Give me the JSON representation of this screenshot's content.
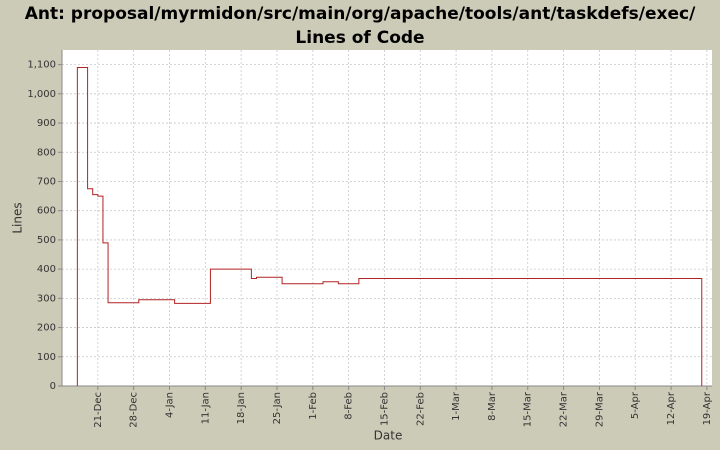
{
  "chart_data": {
    "type": "step-line",
    "title": "Ant: proposal/myrmidon/src/main/org/apache/tools/ant/taskdefs/exec/ Lines of Code",
    "x_label": "Date",
    "y_label": "Lines",
    "x": [
      "17-Dec",
      "17-Dec",
      "19-Dec",
      "20-Dec",
      "21-Dec",
      "22-Dec",
      "22-Dec",
      "23-Dec",
      "29-Dec",
      "5-Jan",
      "12-Jan",
      "20-Jan",
      "21-Jan",
      "26-Jan",
      "3-Feb",
      "6-Feb",
      "10-Feb",
      "18-Apr"
    ],
    "series": [
      {
        "name": "Lines",
        "color": "#b22222",
        "values": [
          0,
          1090,
          675,
          655,
          650,
          525,
          490,
          285,
          295,
          283,
          400,
          368,
          372,
          350,
          357,
          350,
          368,
          0
        ]
      }
    ],
    "xlim": [
      "14-Dec",
      "20-Apr"
    ],
    "xticks": [
      "21-Dec",
      "28-Dec",
      "4-Jan",
      "11-Jan",
      "18-Jan",
      "25-Jan",
      "1-Feb",
      "8-Feb",
      "15-Feb",
      "22-Feb",
      "1-Mar",
      "8-Mar",
      "15-Mar",
      "22-Mar",
      "29-Mar",
      "5-Apr",
      "12-Apr",
      "19-Apr"
    ],
    "ylim": [
      0,
      1150
    ],
    "yticks": [
      0,
      100,
      200,
      300,
      400,
      500,
      600,
      700,
      800,
      900,
      {
        "value": 1000,
        "label": "1,000"
      },
      {
        "value": 1100,
        "label": "1,100"
      }
    ],
    "grid": true
  }
}
